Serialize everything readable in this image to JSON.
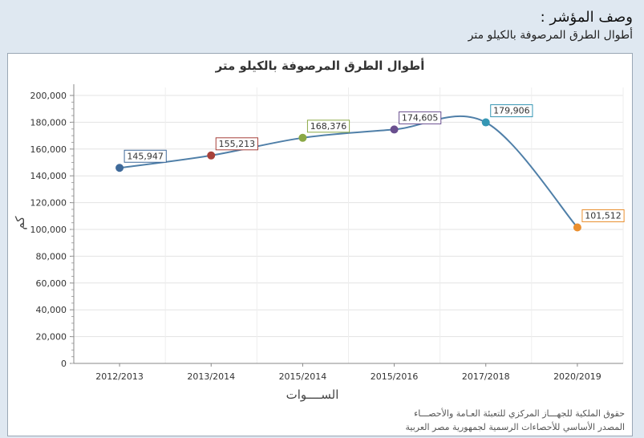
{
  "header": {
    "title": "وصف المؤشر :",
    "subtitle": "أطوال الطرق المرصوفة بالكيلو متر"
  },
  "footer": {
    "line1": "حقوق الملكية للجهـــاز المركزي للتعبئة العـامة والأحصـــاء",
    "line2": "المصدر الأساسي للأحصاءات الرسمية لجمهورية مصر العربية"
  },
  "chart_data": {
    "type": "line",
    "title": "أطوال الطرق المرصوفة بالكيلو متر",
    "xlabel": "الســــوات",
    "ylabel": "كم",
    "categories": [
      "2012/2013",
      "2013/2014",
      "2015/2014",
      "2015/2016",
      "2017/2018",
      "2020/2019"
    ],
    "values": [
      145947,
      155213,
      168376,
      174605,
      179906,
      101512
    ],
    "data_labels": [
      "145,947",
      "155,213",
      "168,376",
      "174,605",
      "179,906",
      "101,512"
    ],
    "point_colors": [
      "#3f6a9a",
      "#a7413a",
      "#8aa845",
      "#6a4f8f",
      "#3597b4",
      "#ea8f2f"
    ],
    "line_color": "#4f7fa8",
    "ylim": [
      0,
      200000
    ],
    "yticks": [
      "0",
      "20,000",
      "40,000",
      "60,000",
      "80,000",
      "100,000",
      "120,000",
      "140,000",
      "160,000",
      "180,000",
      "200,000"
    ],
    "grid": true,
    "smooth": true
  }
}
